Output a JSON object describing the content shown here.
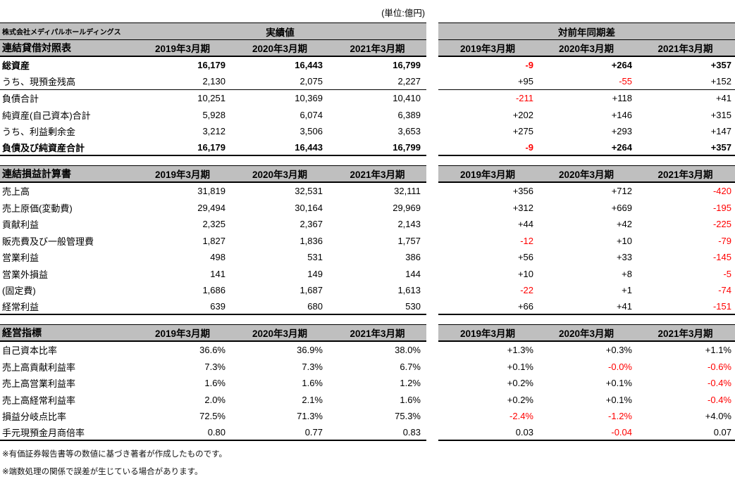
{
  "unit_note": "(単位:億円)",
  "company": "株式会社メディパルホールディングス",
  "actuals_header": "実績値",
  "diff_header": "対前年同期差",
  "colors": {
    "header_bg": "#bfbfbf",
    "negative": "#ff0000",
    "text": "#000000"
  },
  "sections": [
    {
      "title": "連結貸借対照表",
      "years": [
        "2019年3月期",
        "2020年3月期",
        "2021年3月期"
      ],
      "rows": [
        {
          "label": "総資産",
          "indent": 0,
          "bold": true,
          "sep_below": false,
          "actual": [
            "16,179",
            "16,443",
            "16,799"
          ],
          "diff": [
            "-9",
            "+264",
            "+357"
          ]
        },
        {
          "label": "うち、現預金残高",
          "indent": 2,
          "bold": false,
          "sep_below": true,
          "actual": [
            "2,130",
            "2,075",
            "2,227"
          ],
          "diff": [
            "+95",
            "-55",
            "+152"
          ]
        },
        {
          "label": "負債合計",
          "indent": 1,
          "bold": false,
          "sep_below": false,
          "actual": [
            "10,251",
            "10,369",
            "10,410"
          ],
          "diff": [
            "-211",
            "+118",
            "+41"
          ]
        },
        {
          "label": "純資産(自己資本)合計",
          "indent": 1,
          "bold": false,
          "sep_below": false,
          "actual": [
            "5,928",
            "6,074",
            "6,389"
          ],
          "diff": [
            "+202",
            "+146",
            "+315"
          ]
        },
        {
          "label": "うち、利益剰余金",
          "indent": 3,
          "bold": false,
          "sep_below": false,
          "actual": [
            "3,212",
            "3,506",
            "3,653"
          ],
          "diff": [
            "+275",
            "+293",
            "+147"
          ]
        },
        {
          "label": "負債及び純資産合計",
          "indent": 0,
          "bold": true,
          "sep_below": false,
          "actual": [
            "16,179",
            "16,443",
            "16,799"
          ],
          "diff": [
            "-9",
            "+264",
            "+357"
          ]
        }
      ]
    },
    {
      "title": "連結損益計算書",
      "years": [
        "2019年3月期",
        "2020年3月期",
        "2021年3月期"
      ],
      "rows": [
        {
          "label": "売上高",
          "indent": 0,
          "bold": false,
          "sep_below": false,
          "actual": [
            "31,819",
            "32,531",
            "32,111"
          ],
          "diff": [
            "+356",
            "+712",
            "-420"
          ]
        },
        {
          "label": "売上原価(変動費)",
          "indent": 1,
          "bold": false,
          "sep_below": false,
          "actual": [
            "29,494",
            "30,164",
            "29,969"
          ],
          "diff": [
            "+312",
            "+669",
            "-195"
          ]
        },
        {
          "label": "貢献利益",
          "indent": 0,
          "bold": false,
          "sep_below": false,
          "actual": [
            "2,325",
            "2,367",
            "2,143"
          ],
          "diff": [
            "+44",
            "+42",
            "-225"
          ]
        },
        {
          "label": "販売費及び一般管理費",
          "indent": 1,
          "bold": false,
          "sep_below": false,
          "actual": [
            "1,827",
            "1,836",
            "1,757"
          ],
          "diff": [
            "-12",
            "+10",
            "-79"
          ]
        },
        {
          "label": "営業利益",
          "indent": 0,
          "bold": false,
          "sep_below": false,
          "actual": [
            "498",
            "531",
            "386"
          ],
          "diff": [
            "+56",
            "+33",
            "-145"
          ]
        },
        {
          "label": "営業外損益",
          "indent": 1,
          "bold": false,
          "sep_below": false,
          "actual": [
            "141",
            "149",
            "144"
          ],
          "diff": [
            "+10",
            "+8",
            "-5"
          ]
        },
        {
          "label": "(固定費)",
          "indent": 1,
          "bold": false,
          "sep_below": false,
          "actual": [
            "1,686",
            "1,687",
            "1,613"
          ],
          "diff": [
            "-22",
            "+1",
            "-74"
          ]
        },
        {
          "label": "経常利益",
          "indent": 0,
          "bold": false,
          "sep_below": false,
          "actual": [
            "639",
            "680",
            "530"
          ],
          "diff": [
            "+66",
            "+41",
            "-151"
          ]
        }
      ]
    },
    {
      "title": "経営指標",
      "years": [
        "2019年3月期",
        "2020年3月期",
        "2021年3月期"
      ],
      "rows": [
        {
          "label": "自己資本比率",
          "indent": 0,
          "bold": false,
          "sep_below": false,
          "actual": [
            "36.6%",
            "36.9%",
            "38.0%"
          ],
          "diff": [
            "+1.3%",
            "+0.3%",
            "+1.1%"
          ]
        },
        {
          "label": "売上高貢献利益率",
          "indent": 0,
          "bold": false,
          "sep_below": false,
          "actual": [
            "7.3%",
            "7.3%",
            "6.7%"
          ],
          "diff": [
            "+0.1%",
            "-0.0%",
            "-0.6%"
          ]
        },
        {
          "label": "売上高営業利益率",
          "indent": 0,
          "bold": false,
          "sep_below": false,
          "actual": [
            "1.6%",
            "1.6%",
            "1.2%"
          ],
          "diff": [
            "+0.2%",
            "+0.1%",
            "-0.4%"
          ]
        },
        {
          "label": "売上高経常利益率",
          "indent": 0,
          "bold": false,
          "sep_below": false,
          "actual": [
            "2.0%",
            "2.1%",
            "1.6%"
          ],
          "diff": [
            "+0.2%",
            "+0.1%",
            "-0.4%"
          ]
        },
        {
          "label": "損益分岐点比率",
          "indent": 0,
          "bold": false,
          "sep_below": false,
          "actual": [
            "72.5%",
            "71.3%",
            "75.3%"
          ],
          "diff": [
            "-2.4%",
            "-1.2%",
            "+4.0%"
          ]
        },
        {
          "label": "手元現預金月商倍率",
          "indent": 0,
          "bold": false,
          "sep_below": false,
          "actual": [
            "0.80",
            "0.77",
            "0.83"
          ],
          "diff": [
            "0.03",
            "-0.04",
            "0.07"
          ]
        }
      ]
    }
  ],
  "footnotes": [
    "※有価証券報告書等の数値に基づき著者が作成したものです。",
    "※端数処理の関係で誤差が生じている場合があります。"
  ]
}
